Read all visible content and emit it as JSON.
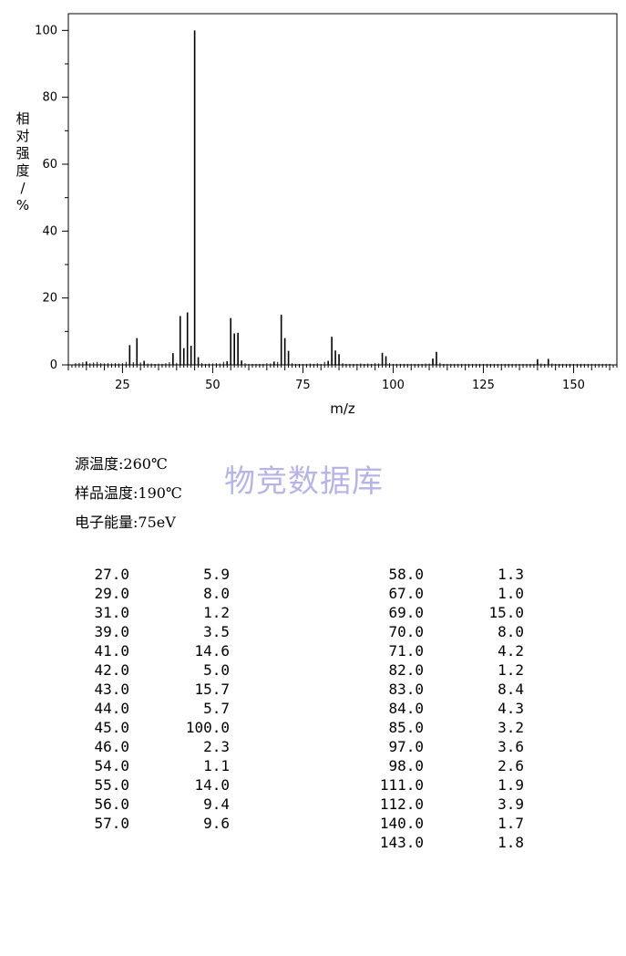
{
  "chart_data": {
    "type": "bar",
    "xlabel": "m/z",
    "ylabel": "相对强度/%",
    "xlim": [
      10,
      162
    ],
    "ylim": [
      0,
      105
    ],
    "x_ticks": [
      25,
      50,
      75,
      100,
      125,
      150
    ],
    "y_ticks": [
      0,
      20,
      40,
      60,
      80,
      100
    ],
    "grid": false,
    "peaks": [
      {
        "mz": 12,
        "y": 0.5
      },
      {
        "mz": 13,
        "y": 0.6
      },
      {
        "mz": 14,
        "y": 0.8
      },
      {
        "mz": 15,
        "y": 1.0
      },
      {
        "mz": 16,
        "y": 0.5
      },
      {
        "mz": 17,
        "y": 0.7
      },
      {
        "mz": 18,
        "y": 0.9
      },
      {
        "mz": 19,
        "y": 0.5
      },
      {
        "mz": 20,
        "y": 0.4
      },
      {
        "mz": 21,
        "y": 0.5
      },
      {
        "mz": 22,
        "y": 0.4
      },
      {
        "mz": 23,
        "y": 0.5
      },
      {
        "mz": 24,
        "y": 0.4
      },
      {
        "mz": 25,
        "y": 0.5
      },
      {
        "mz": 26,
        "y": 0.9
      },
      {
        "mz": 27,
        "y": 5.9
      },
      {
        "mz": 28,
        "y": 0.8
      },
      {
        "mz": 29,
        "y": 8.0
      },
      {
        "mz": 30,
        "y": 0.7
      },
      {
        "mz": 31,
        "y": 1.2
      },
      {
        "mz": 32,
        "y": 0.4
      },
      {
        "mz": 33,
        "y": 0.4
      },
      {
        "mz": 34,
        "y": 0.3
      },
      {
        "mz": 35,
        "y": 0.4
      },
      {
        "mz": 36,
        "y": 0.3
      },
      {
        "mz": 37,
        "y": 0.5
      },
      {
        "mz": 38,
        "y": 0.8
      },
      {
        "mz": 39,
        "y": 3.5
      },
      {
        "mz": 40,
        "y": 0.6
      },
      {
        "mz": 41,
        "y": 14.6
      },
      {
        "mz": 42,
        "y": 5.0
      },
      {
        "mz": 43,
        "y": 15.7
      },
      {
        "mz": 44,
        "y": 5.7
      },
      {
        "mz": 45,
        "y": 100.0
      },
      {
        "mz": 46,
        "y": 2.3
      },
      {
        "mz": 47,
        "y": 0.5
      },
      {
        "mz": 48,
        "y": 0.3
      },
      {
        "mz": 49,
        "y": 0.4
      },
      {
        "mz": 50,
        "y": 0.4
      },
      {
        "mz": 51,
        "y": 0.5
      },
      {
        "mz": 52,
        "y": 0.4
      },
      {
        "mz": 53,
        "y": 0.9
      },
      {
        "mz": 54,
        "y": 1.1
      },
      {
        "mz": 55,
        "y": 14.0
      },
      {
        "mz": 56,
        "y": 9.4
      },
      {
        "mz": 57,
        "y": 9.6
      },
      {
        "mz": 58,
        "y": 1.3
      },
      {
        "mz": 59,
        "y": 0.5
      },
      {
        "mz": 60,
        "y": 0.3
      },
      {
        "mz": 61,
        "y": 0.3
      },
      {
        "mz": 62,
        "y": 0.3
      },
      {
        "mz": 63,
        "y": 0.3
      },
      {
        "mz": 64,
        "y": 0.3
      },
      {
        "mz": 65,
        "y": 0.5
      },
      {
        "mz": 66,
        "y": 0.4
      },
      {
        "mz": 67,
        "y": 1.0
      },
      {
        "mz": 68,
        "y": 0.9
      },
      {
        "mz": 69,
        "y": 15.0
      },
      {
        "mz": 70,
        "y": 8.0
      },
      {
        "mz": 71,
        "y": 4.2
      },
      {
        "mz": 72,
        "y": 0.5
      },
      {
        "mz": 73,
        "y": 0.3
      },
      {
        "mz": 74,
        "y": 0.3
      },
      {
        "mz": 75,
        "y": 0.3
      },
      {
        "mz": 76,
        "y": 0.3
      },
      {
        "mz": 77,
        "y": 0.4
      },
      {
        "mz": 78,
        "y": 0.3
      },
      {
        "mz": 79,
        "y": 0.5
      },
      {
        "mz": 80,
        "y": 0.3
      },
      {
        "mz": 81,
        "y": 0.9
      },
      {
        "mz": 82,
        "y": 1.2
      },
      {
        "mz": 83,
        "y": 8.4
      },
      {
        "mz": 84,
        "y": 4.3
      },
      {
        "mz": 85,
        "y": 3.2
      },
      {
        "mz": 86,
        "y": 0.5
      },
      {
        "mz": 87,
        "y": 0.3
      },
      {
        "mz": 88,
        "y": 0.3
      },
      {
        "mz": 89,
        "y": 0.3
      },
      {
        "mz": 90,
        "y": 0.3
      },
      {
        "mz": 91,
        "y": 0.4
      },
      {
        "mz": 92,
        "y": 0.3
      },
      {
        "mz": 93,
        "y": 0.4
      },
      {
        "mz": 94,
        "y": 0.3
      },
      {
        "mz": 95,
        "y": 0.5
      },
      {
        "mz": 96,
        "y": 0.4
      },
      {
        "mz": 97,
        "y": 3.6
      },
      {
        "mz": 98,
        "y": 2.6
      },
      {
        "mz": 99,
        "y": 0.5
      },
      {
        "mz": 100,
        "y": 0.3
      },
      {
        "mz": 101,
        "y": 0.3
      },
      {
        "mz": 102,
        "y": 0.3
      },
      {
        "mz": 103,
        "y": 0.3
      },
      {
        "mz": 104,
        "y": 0.3
      },
      {
        "mz": 105,
        "y": 0.3
      },
      {
        "mz": 106,
        "y": 0.3
      },
      {
        "mz": 107,
        "y": 0.3
      },
      {
        "mz": 108,
        "y": 0.3
      },
      {
        "mz": 109,
        "y": 0.4
      },
      {
        "mz": 110,
        "y": 0.4
      },
      {
        "mz": 111,
        "y": 1.9
      },
      {
        "mz": 112,
        "y": 3.9
      },
      {
        "mz": 113,
        "y": 0.6
      },
      {
        "mz": 114,
        "y": 0.3
      },
      {
        "mz": 115,
        "y": 0.3
      },
      {
        "mz": 116,
        "y": 0.3
      },
      {
        "mz": 117,
        "y": 0.3
      },
      {
        "mz": 118,
        "y": 0.3
      },
      {
        "mz": 119,
        "y": 0.3
      },
      {
        "mz": 120,
        "y": 0.3
      },
      {
        "mz": 121,
        "y": 0.3
      },
      {
        "mz": 122,
        "y": 0.3
      },
      {
        "mz": 123,
        "y": 0.3
      },
      {
        "mz": 124,
        "y": 0.3
      },
      {
        "mz": 125,
        "y": 0.3
      },
      {
        "mz": 126,
        "y": 0.3
      },
      {
        "mz": 127,
        "y": 0.3
      },
      {
        "mz": 128,
        "y": 0.3
      },
      {
        "mz": 129,
        "y": 0.3
      },
      {
        "mz": 130,
        "y": 0.3
      },
      {
        "mz": 131,
        "y": 0.3
      },
      {
        "mz": 132,
        "y": 0.3
      },
      {
        "mz": 133,
        "y": 0.3
      },
      {
        "mz": 134,
        "y": 0.3
      },
      {
        "mz": 135,
        "y": 0.3
      },
      {
        "mz": 136,
        "y": 0.3
      },
      {
        "mz": 137,
        "y": 0.3
      },
      {
        "mz": 138,
        "y": 0.3
      },
      {
        "mz": 139,
        "y": 0.3
      },
      {
        "mz": 140,
        "y": 1.7
      },
      {
        "mz": 141,
        "y": 0.4
      },
      {
        "mz": 142,
        "y": 0.3
      },
      {
        "mz": 143,
        "y": 1.8
      },
      {
        "mz": 144,
        "y": 0.4
      },
      {
        "mz": 145,
        "y": 0.3
      },
      {
        "mz": 146,
        "y": 0.3
      },
      {
        "mz": 147,
        "y": 0.3
      },
      {
        "mz": 148,
        "y": 0.3
      },
      {
        "mz": 149,
        "y": 0.3
      },
      {
        "mz": 150,
        "y": 0.3
      },
      {
        "mz": 151,
        "y": 0.3
      },
      {
        "mz": 152,
        "y": 0.3
      },
      {
        "mz": 153,
        "y": 0.3
      },
      {
        "mz": 154,
        "y": 0.3
      },
      {
        "mz": 155,
        "y": 0.3
      },
      {
        "mz": 156,
        "y": 0.3
      },
      {
        "mz": 157,
        "y": 0.3
      },
      {
        "mz": 158,
        "y": 0.3
      },
      {
        "mz": 159,
        "y": 0.3
      },
      {
        "mz": 160,
        "y": 0.3
      }
    ]
  },
  "conditions": {
    "source_temp": "源温度:260℃",
    "sample_temp": "样品温度:190℃",
    "electron_energy": "电子能量:75eV"
  },
  "watermark": "物竞数据库",
  "peak_table": {
    "left": [
      {
        "mz": "27.0",
        "intensity": "5.9"
      },
      {
        "mz": "29.0",
        "intensity": "8.0"
      },
      {
        "mz": "31.0",
        "intensity": "1.2"
      },
      {
        "mz": "39.0",
        "intensity": "3.5"
      },
      {
        "mz": "41.0",
        "intensity": "14.6"
      },
      {
        "mz": "42.0",
        "intensity": "5.0"
      },
      {
        "mz": "43.0",
        "intensity": "15.7"
      },
      {
        "mz": "44.0",
        "intensity": "5.7"
      },
      {
        "mz": "45.0",
        "intensity": "100.0"
      },
      {
        "mz": "46.0",
        "intensity": "2.3"
      },
      {
        "mz": "54.0",
        "intensity": "1.1"
      },
      {
        "mz": "55.0",
        "intensity": "14.0"
      },
      {
        "mz": "56.0",
        "intensity": "9.4"
      },
      {
        "mz": "57.0",
        "intensity": "9.6"
      }
    ],
    "right": [
      {
        "mz": "58.0",
        "intensity": "1.3"
      },
      {
        "mz": "67.0",
        "intensity": "1.0"
      },
      {
        "mz": "69.0",
        "intensity": "15.0"
      },
      {
        "mz": "70.0",
        "intensity": "8.0"
      },
      {
        "mz": "71.0",
        "intensity": "4.2"
      },
      {
        "mz": "82.0",
        "intensity": "1.2"
      },
      {
        "mz": "83.0",
        "intensity": "8.4"
      },
      {
        "mz": "84.0",
        "intensity": "4.3"
      },
      {
        "mz": "85.0",
        "intensity": "3.2"
      },
      {
        "mz": "97.0",
        "intensity": "3.6"
      },
      {
        "mz": "98.0",
        "intensity": "2.6"
      },
      {
        "mz": "111.0",
        "intensity": "1.9"
      },
      {
        "mz": "112.0",
        "intensity": "3.9"
      },
      {
        "mz": "140.0",
        "intensity": "1.7"
      },
      {
        "mz": "143.0",
        "intensity": "1.8"
      }
    ]
  }
}
